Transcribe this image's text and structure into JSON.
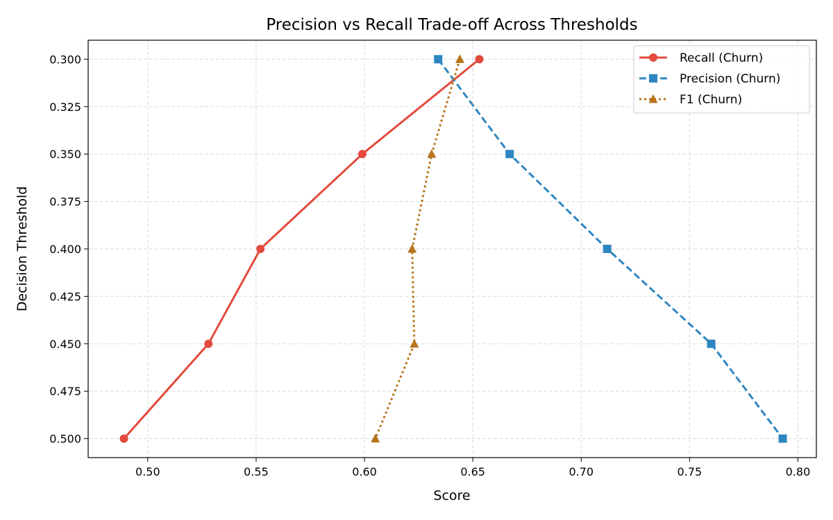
{
  "chart_data": {
    "type": "line",
    "title": "Precision vs Recall Trade-off Across Thresholds",
    "xlabel": "Score",
    "ylabel": "Decision Threshold",
    "xlim": [
      0.4725,
      0.8085
    ],
    "ylim": [
      0.51,
      0.29
    ],
    "y_inverted": true,
    "grid": true,
    "legend_position": "top-right",
    "x_ticks": [
      0.5,
      0.55,
      0.6,
      0.65,
      0.7,
      0.75,
      0.8
    ],
    "x_tick_labels": [
      "0.50",
      "0.55",
      "0.60",
      "0.65",
      "0.70",
      "0.75",
      "0.80"
    ],
    "y_ticks": [
      0.3,
      0.325,
      0.35,
      0.375,
      0.4,
      0.425,
      0.45,
      0.475,
      0.5
    ],
    "y_tick_labels": [
      "0.300",
      "0.325",
      "0.350",
      "0.375",
      "0.400",
      "0.425",
      "0.450",
      "0.475",
      "0.500"
    ],
    "series": [
      {
        "name": "Recall (Churn)",
        "color": "#e34a3b",
        "line_style": "solid",
        "marker": "circle",
        "points": [
          {
            "x": 0.653,
            "y": 0.3
          },
          {
            "x": 0.599,
            "y": 0.35
          },
          {
            "x": 0.552,
            "y": 0.4
          },
          {
            "x": 0.528,
            "y": 0.45
          },
          {
            "x": 0.489,
            "y": 0.5
          }
        ]
      },
      {
        "name": "Precision (Churn)",
        "color": "#2e86c1",
        "line_style": "dashed",
        "marker": "square",
        "points": [
          {
            "x": 0.634,
            "y": 0.3
          },
          {
            "x": 0.667,
            "y": 0.35
          },
          {
            "x": 0.712,
            "y": 0.4
          },
          {
            "x": 0.76,
            "y": 0.45
          },
          {
            "x": 0.793,
            "y": 0.5
          }
        ]
      },
      {
        "name": "F1 (Churn)",
        "color": "#b8741a",
        "line_style": "dotted",
        "marker": "triangle",
        "points": [
          {
            "x": 0.644,
            "y": 0.3
          },
          {
            "x": 0.631,
            "y": 0.35
          },
          {
            "x": 0.622,
            "y": 0.4
          },
          {
            "x": 0.623,
            "y": 0.45
          },
          {
            "x": 0.605,
            "y": 0.5
          }
        ]
      }
    ]
  }
}
